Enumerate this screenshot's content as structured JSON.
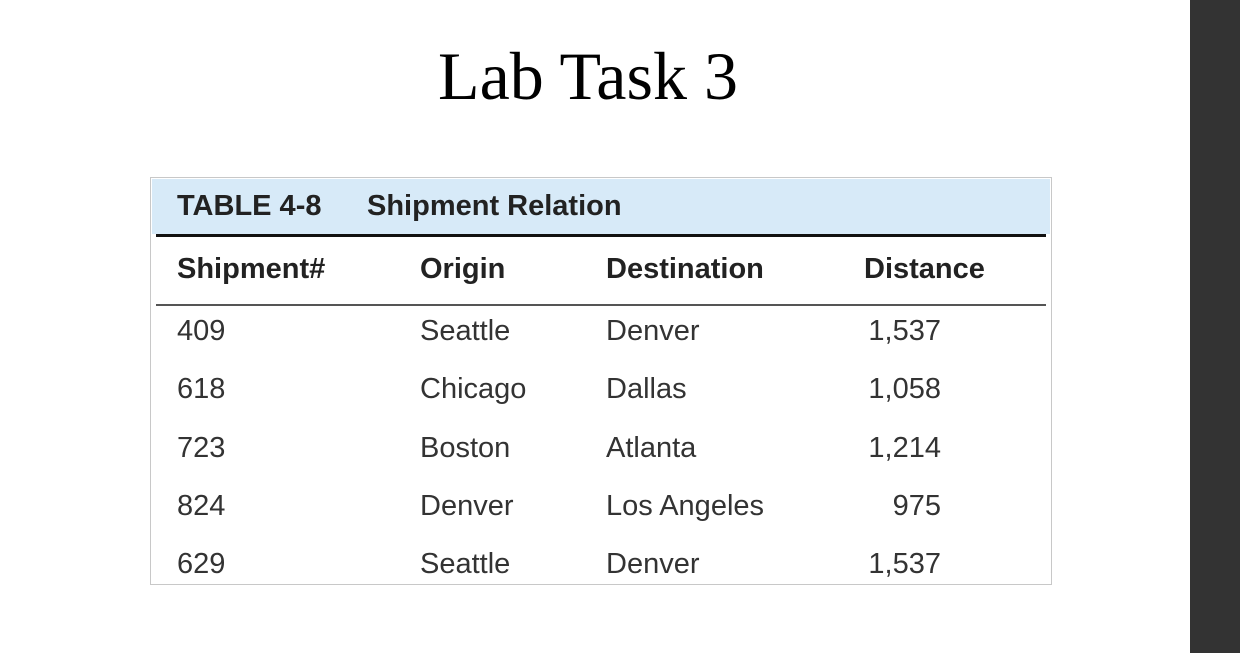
{
  "title": "Lab Task 3",
  "table": {
    "label": "TABLE 4-8",
    "caption": "Shipment Relation",
    "header": [
      "Shipment#",
      "Origin",
      "Destination",
      "Distance"
    ],
    "rows": [
      [
        "409",
        "Seattle",
        "Denver",
        "1,537"
      ],
      [
        "618",
        "Chicago",
        "Dallas",
        "1,058"
      ],
      [
        "723",
        "Boston",
        "Atlanta",
        "1,214"
      ],
      [
        "824",
        "Denver",
        "Los Angeles",
        "975"
      ],
      [
        "629",
        "Seattle",
        "Denver",
        "1,537"
      ]
    ]
  }
}
